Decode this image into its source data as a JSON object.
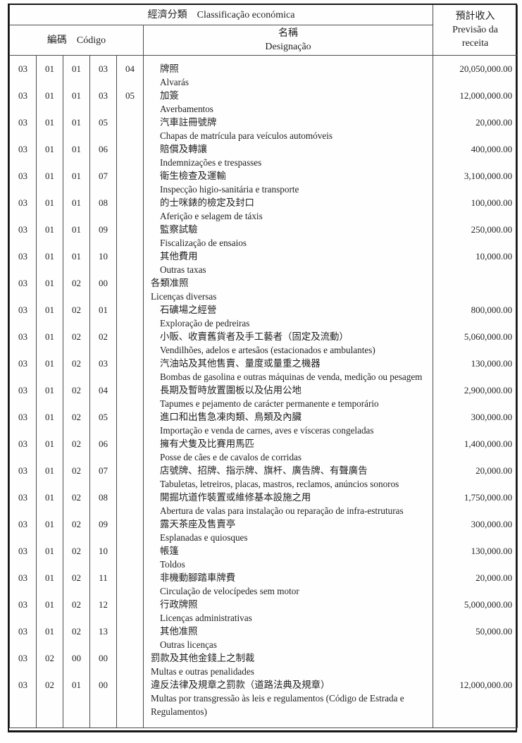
{
  "header": {
    "classification_zh": "經濟分類",
    "classification_pt": "Classificação económica",
    "code_zh": "編碼",
    "code_pt": "Código",
    "designation_zh": "名稱",
    "designation_pt": "Designação",
    "revenue_zh": "預計收入",
    "revenue_pt_line1": "Previsão da",
    "revenue_pt_line2": "receita"
  },
  "rows": [
    {
      "code": [
        "03",
        "01",
        "01",
        "03",
        "04"
      ],
      "zh": "牌照",
      "pt": "Alvarás",
      "amount": "20,050,000.00",
      "group": false,
      "wrap": false
    },
    {
      "code": [
        "03",
        "01",
        "01",
        "03",
        "05"
      ],
      "zh": "加簽",
      "pt": "Averbamentos",
      "amount": "12,000,000.00",
      "group": false,
      "wrap": false
    },
    {
      "code": [
        "03",
        "01",
        "01",
        "05",
        ""
      ],
      "zh": "汽車註冊號牌",
      "pt": "Chapas de matrícula para veículos automóveis",
      "amount": "20,000.00",
      "group": false,
      "wrap": false
    },
    {
      "code": [
        "03",
        "01",
        "01",
        "06",
        ""
      ],
      "zh": "賠償及轉讓",
      "pt": "Indemnizações e trespasses",
      "amount": "400,000.00",
      "group": false,
      "wrap": false
    },
    {
      "code": [
        "03",
        "01",
        "01",
        "07",
        ""
      ],
      "zh": "衛生檢查及運輸",
      "pt": "Inspecção higio-sanitária e transporte",
      "amount": "3,100,000.00",
      "group": false,
      "wrap": false
    },
    {
      "code": [
        "03",
        "01",
        "01",
        "08",
        ""
      ],
      "zh": "的士咪錶的檢定及封口",
      "pt": "Aferição e selagem de táxis",
      "amount": "100,000.00",
      "group": false,
      "wrap": false
    },
    {
      "code": [
        "03",
        "01",
        "01",
        "09",
        ""
      ],
      "zh": "監察試驗",
      "pt": "Fiscalização de ensaios",
      "amount": "250,000.00",
      "group": false,
      "wrap": false
    },
    {
      "code": [
        "03",
        "01",
        "01",
        "10",
        ""
      ],
      "zh": "其他費用",
      "pt": "Outras taxas",
      "amount": "10,000.00",
      "group": false,
      "wrap": false
    },
    {
      "code": [
        "03",
        "01",
        "02",
        "00",
        ""
      ],
      "zh": "各類准照",
      "pt": "Licenças diversas",
      "amount": "",
      "group": true,
      "wrap": false
    },
    {
      "code": [
        "03",
        "01",
        "02",
        "01",
        ""
      ],
      "zh": "石礦場之經營",
      "pt": "Exploração de pedreiras",
      "amount": "800,000.00",
      "group": false,
      "wrap": false
    },
    {
      "code": [
        "03",
        "01",
        "02",
        "02",
        ""
      ],
      "zh": "小販、收賣舊貨者及手工藝者（固定及流動）",
      "pt": "Vendilhões, adelos e artesãos (estacionados e ambulantes)",
      "amount": "5,060,000.00",
      "group": false,
      "wrap": false
    },
    {
      "code": [
        "03",
        "01",
        "02",
        "03",
        ""
      ],
      "zh": "汽油站及其他售賣、量度或量重之機器",
      "pt": "Bombas de gasolina e outras máquinas de venda, medição ou pesagem",
      "amount": "130,000.00",
      "group": false,
      "wrap": false
    },
    {
      "code": [
        "03",
        "01",
        "02",
        "04",
        ""
      ],
      "zh": "長期及暫時放置圍板以及佔用公地",
      "pt": "Tapumes e pejamento de carácter permanente e temporário",
      "amount": "2,900,000.00",
      "group": false,
      "wrap": false
    },
    {
      "code": [
        "03",
        "01",
        "02",
        "05",
        ""
      ],
      "zh": "進口和出售急凍肉類、鳥類及內臟",
      "pt": "Importação e venda de carnes, aves e vísceras congeladas",
      "amount": "300,000.00",
      "group": false,
      "wrap": false
    },
    {
      "code": [
        "03",
        "01",
        "02",
        "06",
        ""
      ],
      "zh": "擁有犬隻及比賽用馬匹",
      "pt": "Posse de cães e de cavalos de corridas",
      "amount": "1,400,000.00",
      "group": false,
      "wrap": false
    },
    {
      "code": [
        "03",
        "01",
        "02",
        "07",
        ""
      ],
      "zh": "店號牌、招牌、指示牌、旗杆、廣告牌、有聲廣告",
      "pt": "Tabuletas, letreiros, placas, mastros, reclamos, anúncios sonoros",
      "amount": "20,000.00",
      "group": false,
      "wrap": false
    },
    {
      "code": [
        "03",
        "01",
        "02",
        "08",
        ""
      ],
      "zh": "開掘坑道作裝置或維修基本設施之用",
      "pt": "Abertura de valas para instalação ou reparação de infra-estruturas",
      "amount": "1,750,000.00",
      "group": false,
      "wrap": false
    },
    {
      "code": [
        "03",
        "01",
        "02",
        "09",
        ""
      ],
      "zh": "露天茶座及售賣亭",
      "pt": "Esplanadas e quiosques",
      "amount": "300,000.00",
      "group": false,
      "wrap": false
    },
    {
      "code": [
        "03",
        "01",
        "02",
        "10",
        ""
      ],
      "zh": "帳篷",
      "pt": "Toldos",
      "amount": "130,000.00",
      "group": false,
      "wrap": false
    },
    {
      "code": [
        "03",
        "01",
        "02",
        "11",
        ""
      ],
      "zh": "非機動腳踏車牌費",
      "pt": "Circulação de velocípedes sem motor",
      "amount": "20,000.00",
      "group": false,
      "wrap": false
    },
    {
      "code": [
        "03",
        "01",
        "02",
        "12",
        ""
      ],
      "zh": "行政牌照",
      "pt": "Licenças administrativas",
      "amount": "5,000,000.00",
      "group": false,
      "wrap": false
    },
    {
      "code": [
        "03",
        "01",
        "02",
        "13",
        ""
      ],
      "zh": "其他准照",
      "pt": "Outras licenças",
      "amount": "50,000.00",
      "group": false,
      "wrap": false
    },
    {
      "code": [
        "03",
        "02",
        "00",
        "00",
        ""
      ],
      "zh": "罰款及其他金錢上之制裁",
      "pt": "Multas e outras penalidades",
      "amount": "",
      "group": true,
      "wrap": false
    },
    {
      "code": [
        "03",
        "02",
        "01",
        "00",
        ""
      ],
      "zh": "違反法律及規章之罰款（道路法典及規章）",
      "pt": "Multas por transgressão às leis e regulamentos (Código de Estrada e Regulamentos)",
      "amount": "12,000,000.00",
      "group": true,
      "wrap": true
    }
  ]
}
